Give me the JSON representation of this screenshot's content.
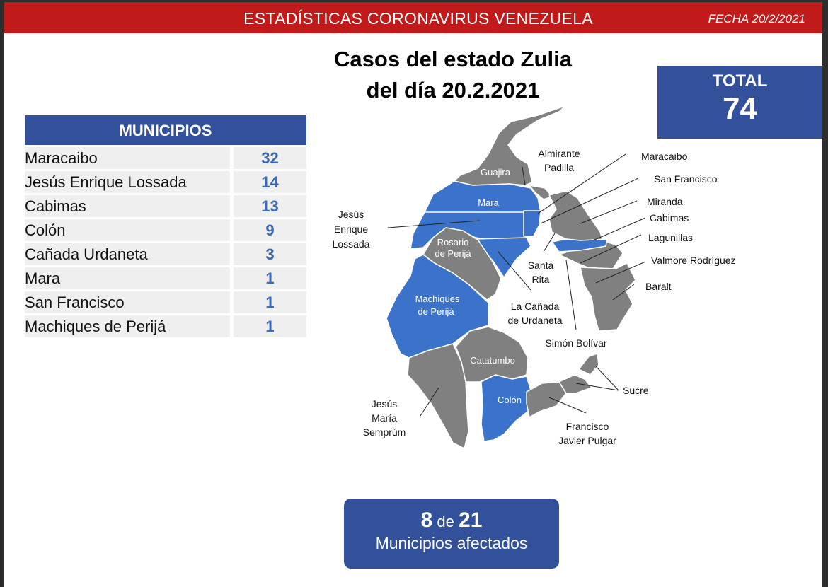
{
  "header": {
    "title": "ESTADÍSTICAS CORONAVIRUS VENEZUELA",
    "date": "FECHA 20/2/2021"
  },
  "main_title": {
    "line1": "Casos del estado Zulia",
    "line2": "del día 20.2.2021"
  },
  "total": {
    "label": "TOTAL",
    "value": "74"
  },
  "table": {
    "header": "MUNICIPIOS",
    "rows": [
      {
        "name": "Maracaibo",
        "value": "32"
      },
      {
        "name": "Jesús Enrique Lossada",
        "value": "14"
      },
      {
        "name": "Cabimas",
        "value": "13"
      },
      {
        "name": "Colón",
        "value": "9"
      },
      {
        "name": "Cañada Urdaneta",
        "value": "3"
      },
      {
        "name": "Mara",
        "value": "1"
      },
      {
        "name": "San Francisco",
        "value": "1"
      },
      {
        "name": "Machiques de Perijá",
        "value": "1"
      }
    ]
  },
  "map": {
    "colors": {
      "affected": "#3a73c9",
      "unaffected": "#808080",
      "border": "#ffffff"
    },
    "inner_labels": {
      "guajira": "Guajira",
      "mara": "Mara",
      "rosario_1": "Rosario",
      "rosario_2": "de Perijá",
      "machiques_1": "Machiques",
      "machiques_2": "de Perijá",
      "catatumbo": "Catatumbo",
      "colon": "Colón"
    },
    "outer_labels": {
      "almirante_1": "Almirante",
      "almirante_2": "Padilla",
      "maracaibo": "Maracaibo",
      "san_francisco": "San Francisco",
      "miranda": "Miranda",
      "cabimas": "Cabimas",
      "lagunillas": "Lagunillas",
      "valmore": "Valmore Rodríguez",
      "baralt": "Baralt",
      "jel_1": "Jesús",
      "jel_2": "Enrique",
      "jel_3": "Lossada",
      "santa_rita_1": "Santa",
      "santa_rita_2": "Rita",
      "canada_1": "La Cañada",
      "canada_2": "de Urdaneta",
      "simon": "Simón Bolívar",
      "sucre": "Sucre",
      "jms_1": "Jesús",
      "jms_2": "María",
      "jms_3": "Semprúm",
      "fjp_1": "Francisco",
      "fjp_2": "Javier Pulgar"
    }
  },
  "affected": {
    "count": "8",
    "connector": "de",
    "total": "21",
    "label": "Municipios afectados"
  }
}
